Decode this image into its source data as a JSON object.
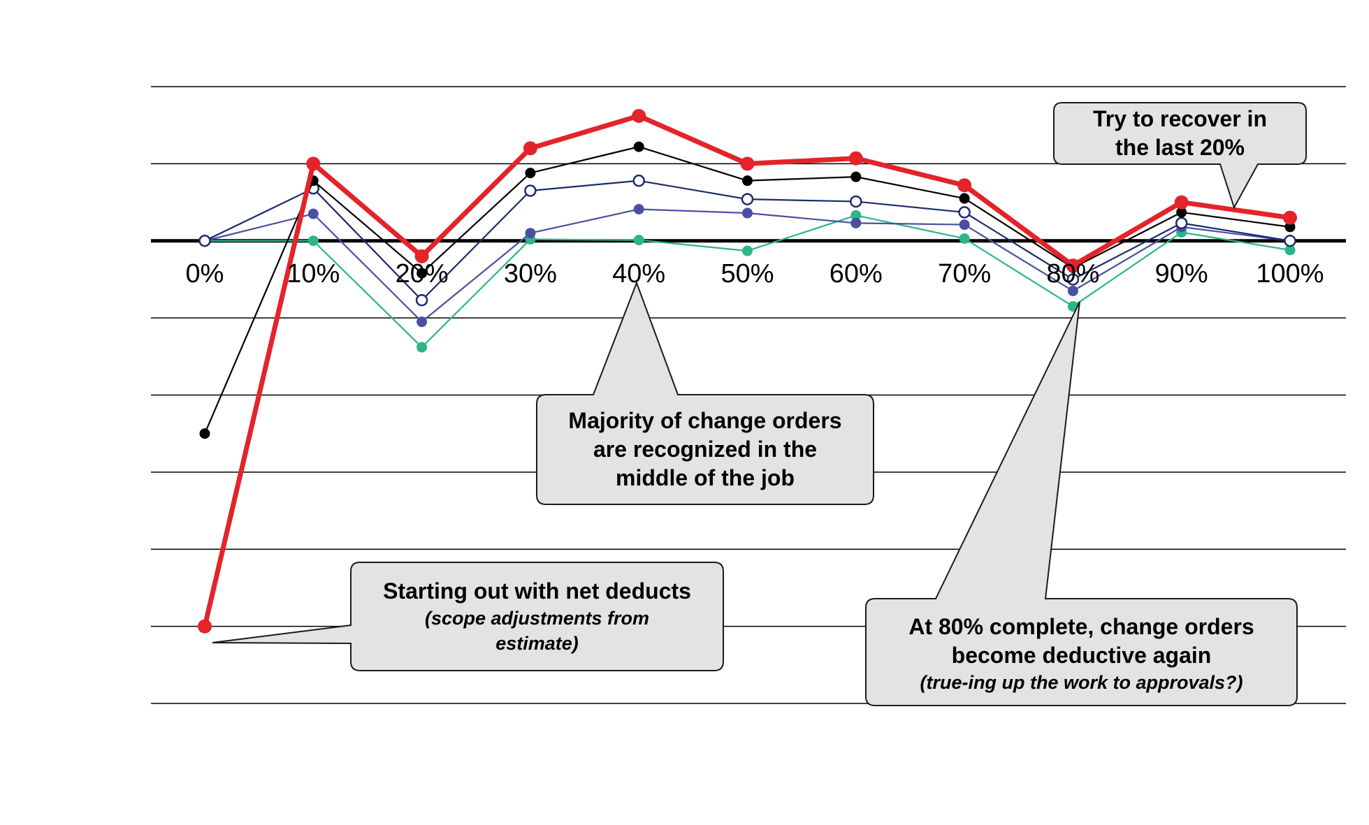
{
  "chart_data": {
    "type": "line",
    "categories": [
      "0%",
      "10%",
      "20%",
      "30%",
      "40%",
      "50%",
      "60%",
      "70%",
      "80%",
      "90%",
      "100%"
    ],
    "ylim": [
      -6,
      2
    ],
    "grid": true,
    "series": [
      {
        "color": "#e4232a",
        "marker": "filled",
        "values": [
          -5.0,
          1.0,
          -0.2,
          1.2,
          1.62,
          1.0,
          1.07,
          0.72,
          -0.32,
          0.5,
          0.3
        ]
      },
      {
        "color": "#000000",
        "marker": "filled",
        "values": [
          -2.5,
          0.78,
          -0.42,
          0.88,
          1.22,
          0.78,
          0.83,
          0.55,
          -0.35,
          0.37,
          0.18
        ]
      },
      {
        "color": "#1a2a6c",
        "marker": "open",
        "values": [
          0.0,
          0.68,
          -0.77,
          0.65,
          0.78,
          0.54,
          0.51,
          0.37,
          -0.5,
          0.23,
          0.0
        ]
      },
      {
        "color": "#4a4fa0",
        "marker": "filled",
        "values": [
          0.0,
          0.35,
          -1.05,
          0.1,
          0.41,
          0.36,
          0.23,
          0.21,
          -0.65,
          0.18,
          0.0
        ]
      },
      {
        "color": "#2bb58a",
        "marker": "filled",
        "values": [
          0.0,
          0.0,
          -1.38,
          0.02,
          0.01,
          -0.13,
          0.33,
          0.03,
          -0.85,
          0.11,
          -0.12
        ]
      }
    ]
  },
  "annotations": {
    "recover": {
      "line1": "Try to recover in",
      "line2": "the last 20%"
    },
    "majority": {
      "line1": "Majority of change orders",
      "line2": "are recognized in the",
      "line3": "middle of the job"
    },
    "deducts": {
      "line1": "Starting out with net deducts",
      "sub1": "(scope adjustments from",
      "sub2": "estimate)"
    },
    "eighty": {
      "line1": "At 80% complete, change orders",
      "line2": "become deductive again",
      "sub1": "(true-ing up the work to approvals?)"
    }
  }
}
